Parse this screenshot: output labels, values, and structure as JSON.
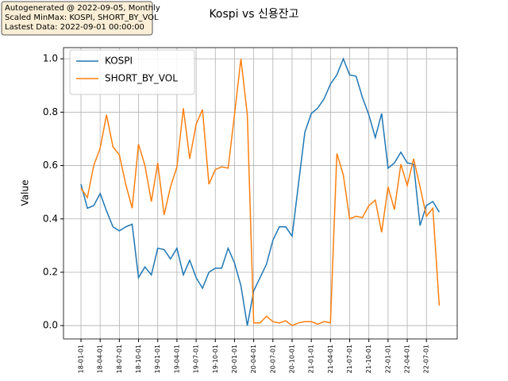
{
  "chart_data": {
    "type": "line",
    "title": "Kospi vs 신용잔고",
    "annotation": [
      "Autogenerated @ 2022-09-05, Monthly",
      "Scaled MinMax: KOSPI, SHORT_BY_VOL",
      "Lastest Data: 2022-09-01 00:00:00"
    ],
    "y_label": "Value",
    "categories": [
      "2018-01-01",
      "2018-02-01",
      "2018-03-01",
      "2018-04-01",
      "2018-05-01",
      "2018-06-01",
      "2018-07-01",
      "2018-08-01",
      "2018-09-01",
      "2018-10-01",
      "2018-11-01",
      "2018-12-01",
      "2019-01-01",
      "2019-02-01",
      "2019-03-01",
      "2019-04-01",
      "2019-05-01",
      "2019-06-01",
      "2019-07-01",
      "2019-08-01",
      "2019-09-01",
      "2019-10-01",
      "2019-11-01",
      "2019-12-01",
      "2020-01-01",
      "2020-02-01",
      "2020-03-01",
      "2020-04-01",
      "2020-05-01",
      "2020-06-01",
      "2020-07-01",
      "2020-08-01",
      "2020-09-01",
      "2020-10-01",
      "2020-11-01",
      "2020-12-01",
      "2021-01-01",
      "2021-02-01",
      "2021-03-01",
      "2021-04-01",
      "2021-05-01",
      "2021-06-01",
      "2021-07-01",
      "2021-08-01",
      "2021-09-01",
      "2021-10-01",
      "2021-11-01",
      "2021-12-01",
      "2022-01-01",
      "2022-02-01",
      "2022-03-01",
      "2022-04-01",
      "2022-05-01",
      "2022-06-01",
      "2022-07-01",
      "2022-08-01",
      "2022-09-01"
    ],
    "series": [
      {
        "name": "KOSPI",
        "color": "#1f77b4",
        "values": [
          0.53,
          0.44,
          0.45,
          0.495,
          0.43,
          0.37,
          0.355,
          0.37,
          0.38,
          0.18,
          0.22,
          0.19,
          0.29,
          0.285,
          0.25,
          0.29,
          0.19,
          0.245,
          0.18,
          0.14,
          0.2,
          0.215,
          0.215,
          0.29,
          0.235,
          0.15,
          0.0,
          0.13,
          0.18,
          0.23,
          0.32,
          0.37,
          0.37,
          0.335,
          0.53,
          0.725,
          0.795,
          0.815,
          0.85,
          0.905,
          0.94,
          1.0,
          0.94,
          0.935,
          0.855,
          0.79,
          0.705,
          0.795,
          0.59,
          0.61,
          0.65,
          0.61,
          0.605,
          0.375,
          0.45,
          0.465,
          0.425
        ]
      },
      {
        "name": "SHORT_BY_VOL",
        "color": "#ff7f0e",
        "values": [
          0.515,
          0.48,
          0.6,
          0.665,
          0.79,
          0.67,
          0.64,
          0.53,
          0.44,
          0.68,
          0.6,
          0.465,
          0.61,
          0.415,
          0.52,
          0.595,
          0.815,
          0.625,
          0.755,
          0.81,
          0.53,
          0.585,
          0.595,
          0.59,
          0.79,
          1.0,
          0.79,
          0.01,
          0.01,
          0.035,
          0.015,
          0.01,
          0.018,
          0.0,
          0.01,
          0.015,
          0.015,
          0.005,
          0.015,
          0.01,
          0.645,
          0.565,
          0.4,
          0.41,
          0.405,
          0.45,
          0.47,
          0.35,
          0.52,
          0.435,
          0.605,
          0.525,
          0.625,
          0.52,
          0.41,
          0.44,
          0.075
        ]
      }
    ],
    "xticks": [
      {
        "value": "2018-01-01",
        "label": "18-01-01"
      },
      {
        "value": "2018-04-01",
        "label": "18-04-01"
      },
      {
        "value": "2018-07-01",
        "label": "18-07-01"
      },
      {
        "value": "2018-10-01",
        "label": "18-10-01"
      },
      {
        "value": "2019-01-01",
        "label": "19-01-01"
      },
      {
        "value": "2019-04-01",
        "label": "19-04-01"
      },
      {
        "value": "2019-07-01",
        "label": "19-07-01"
      },
      {
        "value": "2019-10-01",
        "label": "19-10-01"
      },
      {
        "value": "2020-01-01",
        "label": "20-01-01"
      },
      {
        "value": "2020-04-01",
        "label": "20-04-01"
      },
      {
        "value": "2020-07-01",
        "label": "20-07-01"
      },
      {
        "value": "2020-10-01",
        "label": "20-10-01"
      },
      {
        "value": "2021-01-01",
        "label": "21-01-01"
      },
      {
        "value": "2021-04-01",
        "label": "21-04-01"
      },
      {
        "value": "2021-07-01",
        "label": "21-07-01"
      },
      {
        "value": "2021-10-01",
        "label": "21-10-01"
      },
      {
        "value": "2022-01-01",
        "label": "22-01-01"
      },
      {
        "value": "2022-04-01",
        "label": "22-04-01"
      },
      {
        "value": "2022-07-01",
        "label": "22-07-01"
      }
    ],
    "ylim": [
      -0.05,
      1.042
    ],
    "yticks": [
      {
        "value": 0,
        "label": "0.0"
      },
      {
        "value": 0.2,
        "label": "0.2"
      },
      {
        "value": 0.4,
        "label": "0.4"
      },
      {
        "value": 0.6,
        "label": "0.6"
      },
      {
        "value": 0.8,
        "label": "0.8"
      },
      {
        "value": 1,
        "label": "1.0"
      }
    ],
    "grid": true,
    "legend": "upper left"
  }
}
